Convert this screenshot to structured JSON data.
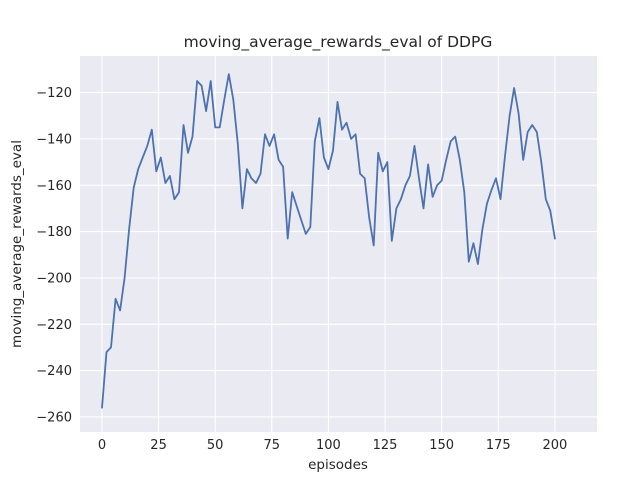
{
  "chart_data": {
    "type": "line",
    "title": "moving_average_rewards_eval of DDPG",
    "xlabel": "episodes",
    "ylabel": "moving_average_rewards_eval",
    "x_ticks": [
      "0",
      "25",
      "50",
      "75",
      "100",
      "125",
      "150",
      "175",
      "200"
    ],
    "x_tick_values": [
      0,
      25,
      50,
      75,
      100,
      125,
      150,
      175,
      200
    ],
    "y_ticks": [
      "−120",
      "−140",
      "−160",
      "−180",
      "−200",
      "−220",
      "−240",
      "−260"
    ],
    "y_tick_values": [
      -120,
      -140,
      -160,
      -180,
      -200,
      -220,
      -240,
      -260
    ],
    "xlim": [
      -9.7,
      218.6
    ],
    "ylim": [
      -266.5,
      -104.2
    ],
    "grid": true,
    "legend": false,
    "style": "seaborn-darkgrid",
    "line_color": "#4c72b0",
    "plot_background_color": "#eaeaf2",
    "grid_color": "#ffffff",
    "text_color": "#262626",
    "x": [
      0,
      2,
      4,
      6,
      8,
      10,
      12,
      14,
      16,
      18,
      20,
      22,
      24,
      26,
      28,
      30,
      32,
      34,
      36,
      38,
      40,
      42,
      44,
      46,
      48,
      50,
      52,
      54,
      56,
      58,
      60,
      62,
      64,
      66,
      68,
      70,
      72,
      74,
      76,
      78,
      80,
      82,
      84,
      86,
      88,
      90,
      92,
      94,
      96,
      98,
      100,
      102,
      104,
      106,
      108,
      110,
      112,
      114,
      116,
      118,
      120,
      122,
      124,
      126,
      128,
      130,
      132,
      134,
      136,
      138,
      140,
      142,
      144,
      146,
      148,
      150,
      152,
      154,
      156,
      158,
      160,
      162,
      164,
      166,
      168,
      170,
      172,
      174,
      176,
      178,
      180,
      182,
      184,
      186,
      188,
      190,
      192,
      194,
      196,
      198,
      200
    ],
    "values": [
      -256,
      -232,
      -230,
      -209,
      -214,
      -200,
      -179,
      -161,
      -153,
      -148,
      -143,
      -136,
      -154,
      -148,
      -159,
      -156,
      -166,
      -163,
      -134,
      -146,
      -139,
      -115,
      -117,
      -128,
      -115,
      -135,
      -135,
      -123,
      -112,
      -123,
      -142,
      -170,
      -153,
      -157,
      -159,
      -155,
      -138,
      -143,
      -138,
      -149,
      -152,
      -183,
      -163,
      -169,
      -175,
      -181,
      -178,
      -141,
      -131,
      -148,
      -153,
      -145,
      -124,
      -136,
      -133,
      -140,
      -138,
      -155,
      -157,
      -174,
      -186,
      -146,
      -154,
      -150,
      -184,
      -170,
      -166,
      -160,
      -156,
      -143,
      -157,
      -170,
      -151,
      -165,
      -160,
      -158,
      -149,
      -141,
      -139,
      -149,
      -163,
      -193,
      -185,
      -194,
      -179,
      -168,
      -162,
      -157,
      -166,
      -147,
      -130,
      -118,
      -129,
      -149,
      -137,
      -134,
      -137,
      -150,
      -166,
      -171,
      -183
    ]
  }
}
